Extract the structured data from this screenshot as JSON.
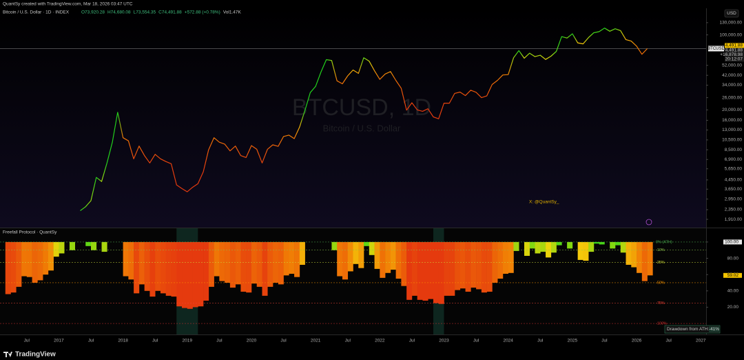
{
  "header": {
    "credit": "QuantSy created with TradingView.com, Mar 18, 2026 03:47 UTC",
    "symbol": "Bitcoin / U.S. Dollar · 1D · INDEX",
    "ohlc": [
      "O73,920.28",
      "H74,680.08",
      "L73,554.35",
      "C74,491.88",
      "+572.88 (+0.78%)"
    ],
    "volume": "Vol1.47K",
    "currency": "USD",
    "watermark": "BTCUSD, 1D",
    "watermark_sub": "Bitcoin / U.S. Dollar",
    "annotation": "X: @QuantSy_",
    "footer": "TradingView"
  },
  "chart_data": [
    {
      "type": "line",
      "log_scale": true,
      "grid": false,
      "xlim": [
        "2016-02",
        "2027-02"
      ],
      "ylim": [
        1600,
        177000
      ],
      "yticks": [
        {
          "value": 130000,
          "label": "130,000.00"
        },
        {
          "value": 100000,
          "label": "100,000.00"
        },
        {
          "value": 52000,
          "label": "52,000.00"
        },
        {
          "value": 42000,
          "label": "42,000.00"
        },
        {
          "value": 34000,
          "label": "34,000.00"
        },
        {
          "value": 26000,
          "label": "26,000.00"
        },
        {
          "value": 20000,
          "label": "20,000.00"
        },
        {
          "value": 16000,
          "label": "16,000.00"
        },
        {
          "value": 13000,
          "label": "13,000.00"
        },
        {
          "value": 10500,
          "label": "10,500.00"
        },
        {
          "value": 8500,
          "label": "8,500.00"
        },
        {
          "value": 6900,
          "label": "6,900.00"
        },
        {
          "value": 5650,
          "label": "5,650.00"
        },
        {
          "value": 4450,
          "label": "4,450.00"
        },
        {
          "value": 3650,
          "label": "3,650.00"
        },
        {
          "value": 2950,
          "label": "2,950.00"
        },
        {
          "value": 2350,
          "label": "2,350.00"
        },
        {
          "value": 1910,
          "label": "1,910.00"
        }
      ],
      "last_price": {
        "value": 74491.88,
        "label": "74,491.88"
      },
      "price_labels": [
        "74,491.88",
        "+16,878.98",
        "20:12:07"
      ],
      "x": [
        "2016-03",
        "2016-04",
        "2016-05",
        "2016-06",
        "2016-07",
        "2016-08",
        "2016-09",
        "2016-10",
        "2016-11",
        "2016-12",
        "2017-01",
        "2017-02",
        "2017-03",
        "2017-04",
        "2017-05",
        "2017-06",
        "2017-07",
        "2017-08",
        "2017-09",
        "2017-10",
        "2017-11",
        "2017-12",
        "2018-01",
        "2018-02",
        "2018-03",
        "2018-04",
        "2018-05",
        "2018-06",
        "2018-07",
        "2018-08",
        "2018-09",
        "2018-10",
        "2018-11",
        "2018-12",
        "2019-01",
        "2019-02",
        "2019-03",
        "2019-04",
        "2019-05",
        "2019-06",
        "2019-07",
        "2019-08",
        "2019-09",
        "2019-10",
        "2019-11",
        "2019-12",
        "2020-01",
        "2020-02",
        "2020-03",
        "2020-04",
        "2020-05",
        "2020-06",
        "2020-07",
        "2020-08",
        "2020-09",
        "2020-10",
        "2020-11",
        "2020-12",
        "2021-01",
        "2021-02",
        "2021-03",
        "2021-04",
        "2021-05",
        "2021-06",
        "2021-07",
        "2021-08",
        "2021-09",
        "2021-10",
        "2021-11",
        "2021-12",
        "2022-01",
        "2022-02",
        "2022-03",
        "2022-04",
        "2022-05",
        "2022-06",
        "2022-07",
        "2022-08",
        "2022-09",
        "2022-10",
        "2022-11",
        "2022-12",
        "2023-01",
        "2023-02",
        "2023-03",
        "2023-04",
        "2023-05",
        "2023-06",
        "2023-07",
        "2023-08",
        "2023-09",
        "2023-10",
        "2023-11",
        "2023-12",
        "2024-01",
        "2024-02",
        "2024-03",
        "2024-04",
        "2024-05",
        "2024-06",
        "2024-07",
        "2024-08",
        "2024-09",
        "2024-10",
        "2024-11",
        "2024-12",
        "2025-01",
        "2025-02",
        "2025-03",
        "2025-04",
        "2025-05",
        "2025-06",
        "2025-07",
        "2025-08",
        "2025-09",
        "2025-10",
        "2025-11",
        "2025-12",
        "2026-01",
        "2026-02",
        "2026-03"
      ],
      "series": [
        {
          "name": "BTCUSD",
          "values": [
            null,
            null,
            null,
            null,
            null,
            null,
            null,
            null,
            null,
            null,
            null,
            null,
            null,
            null,
            2300,
            2500,
            2850,
            4700,
            4300,
            6400,
            10000,
            19000,
            11000,
            10300,
            7000,
            9200,
            7500,
            6400,
            7700,
            7000,
            6600,
            6300,
            4000,
            3700,
            3450,
            3800,
            4100,
            5300,
            8500,
            11000,
            10000,
            9600,
            8300,
            9200,
            7500,
            7200,
            9300,
            8600,
            6400,
            8600,
            9450,
            9150,
            11300,
            11650,
            10800,
            13800,
            19700,
            29000,
            33100,
            45000,
            58800,
            57700,
            37300,
            35000,
            41500,
            47100,
            43800,
            61300,
            57000,
            46300,
            38500,
            43200,
            45500,
            37700,
            31800,
            19900,
            23300,
            20000,
            19400,
            20500,
            17200,
            16500,
            23100,
            23100,
            28500,
            29300,
            27200,
            30500,
            29200,
            26000,
            27000,
            34500,
            37700,
            42300,
            42600,
            61200,
            71300,
            60600,
            67500,
            62700,
            64600,
            59000,
            63300,
            70200,
            96400,
            93400,
            102400,
            84300,
            82500,
            94200,
            104600,
            107100,
            115700,
            108200,
            114000,
            109500,
            90400,
            87500,
            78600,
            66000,
            74491.88
          ]
        }
      ]
    },
    {
      "type": "bar",
      "title": "Freefall Protocol · QuantSy",
      "xlim": [
        "2016-02",
        "2027-02"
      ],
      "ylim": [
        -13.5,
        105
      ],
      "yticks": [
        {
          "value": 100,
          "label": "100.00"
        },
        {
          "value": 80,
          "label": "80.00"
        },
        {
          "value": 60,
          "label": "60.00"
        },
        {
          "value": 40,
          "label": "40.00"
        },
        {
          "value": 20,
          "label": "20.00"
        }
      ],
      "xticks": [
        {
          "value": "2016-07",
          "label": "Jul"
        },
        {
          "value": "2017-01",
          "label": "2017"
        },
        {
          "value": "2017-07",
          "label": "Jul"
        },
        {
          "value": "2018-01",
          "label": "2018"
        },
        {
          "value": "2018-07",
          "label": "Jul"
        },
        {
          "value": "2019-01",
          "label": "2019"
        },
        {
          "value": "2019-07",
          "label": "Jul"
        },
        {
          "value": "2020-01",
          "label": "2020"
        },
        {
          "value": "2020-07",
          "label": "Jul"
        },
        {
          "value": "2021-01",
          "label": "2021"
        },
        {
          "value": "2021-07",
          "label": "Jul"
        },
        {
          "value": "2022-01",
          "label": "2022"
        },
        {
          "value": "2022-07",
          "label": "Jul"
        },
        {
          "value": "2023-01",
          "label": "2023"
        },
        {
          "value": "2023-07",
          "label": "Jul"
        },
        {
          "value": "2024-01",
          "label": "2024"
        },
        {
          "value": "2024-07",
          "label": "Jul"
        },
        {
          "value": "2025-01",
          "label": "2025"
        },
        {
          "value": "2025-07",
          "label": "Jul"
        },
        {
          "value": "2026-01",
          "label": "2026"
        },
        {
          "value": "2026-07",
          "label": "Jul"
        },
        {
          "value": "2027-01",
          "label": "2027"
        }
      ],
      "levels": [
        {
          "value": 100,
          "label": "0% (ATH)",
          "color": "#4caf50"
        },
        {
          "value": 90,
          "label": "-10%",
          "color": "#8bc34a"
        },
        {
          "value": 75,
          "label": "-25%",
          "color": "#cddc39"
        },
        {
          "value": 50,
          "label": "-50%",
          "color": "#ff9800"
        },
        {
          "value": 25,
          "label": "-75%",
          "color": "#f44336"
        },
        {
          "value": 0,
          "label": "-100%",
          "color": "#d32f2f"
        }
      ],
      "colormap": [
        {
          "at": 30,
          "color": "#e53a0e"
        },
        {
          "at": 60,
          "color": "#f07a05"
        },
        {
          "at": 80,
          "color": "#f5d20a"
        },
        {
          "at": 93,
          "color": "#7ad911"
        },
        {
          "at": 100,
          "color": "#22d11c"
        }
      ],
      "zones": [
        [
          "2018-11",
          "2019-03"
        ],
        [
          "2022-11",
          "2023-01"
        ]
      ],
      "table": {
        "label": "Drawdown from ATH:",
        "value": "-41%"
      },
      "x": [
        "2016-03",
        "2016-04",
        "2016-05",
        "2016-06",
        "2016-07",
        "2016-08",
        "2016-09",
        "2016-10",
        "2016-11",
        "2016-12",
        "2017-01",
        "2017-02",
        "2017-03",
        "2017-04",
        "2017-05",
        "2017-06",
        "2017-07",
        "2017-08",
        "2017-09",
        "2017-10",
        "2017-11",
        "2017-12",
        "2018-01",
        "2018-02",
        "2018-03",
        "2018-04",
        "2018-05",
        "2018-06",
        "2018-07",
        "2018-08",
        "2018-09",
        "2018-10",
        "2018-11",
        "2018-12",
        "2019-01",
        "2019-02",
        "2019-03",
        "2019-04",
        "2019-05",
        "2019-06",
        "2019-07",
        "2019-08",
        "2019-09",
        "2019-10",
        "2019-11",
        "2019-12",
        "2020-01",
        "2020-02",
        "2020-03",
        "2020-04",
        "2020-05",
        "2020-06",
        "2020-07",
        "2020-08",
        "2020-09",
        "2020-10",
        "2020-11",
        "2020-12",
        "2021-01",
        "2021-02",
        "2021-03",
        "2021-04",
        "2021-05",
        "2021-06",
        "2021-07",
        "2021-08",
        "2021-09",
        "2021-10",
        "2021-11",
        "2021-12",
        "2022-01",
        "2022-02",
        "2022-03",
        "2022-04",
        "2022-05",
        "2022-06",
        "2022-07",
        "2022-08",
        "2022-09",
        "2022-10",
        "2022-11",
        "2022-12",
        "2023-01",
        "2023-02",
        "2023-03",
        "2023-04",
        "2023-05",
        "2023-06",
        "2023-07",
        "2023-08",
        "2023-09",
        "2023-10",
        "2023-11",
        "2023-12",
        "2024-01",
        "2024-02",
        "2024-03",
        "2024-04",
        "2024-05",
        "2024-06",
        "2024-07",
        "2024-08",
        "2024-09",
        "2024-10",
        "2024-11",
        "2024-12",
        "2025-01",
        "2025-02",
        "2025-03",
        "2025-04",
        "2025-05",
        "2025-06",
        "2025-07",
        "2025-08",
        "2025-09",
        "2025-10",
        "2025-11",
        "2025-12",
        "2026-01",
        "2026-02",
        "2026-03"
      ],
      "values": [
        36,
        38,
        45,
        58,
        57,
        50,
        53,
        60,
        65,
        82,
        86,
        100,
        90,
        100,
        100,
        95,
        90,
        100,
        88,
        100,
        100,
        100,
        58,
        54,
        37,
        48,
        40,
        33,
        40,
        37,
        34,
        33,
        21,
        19,
        18,
        20,
        21,
        28,
        45,
        58,
        52,
        50,
        44,
        48,
        39,
        38,
        49,
        45,
        34,
        45,
        50,
        48,
        59,
        61,
        57,
        72,
        100,
        100,
        100,
        100,
        100,
        90,
        58,
        54,
        64,
        73,
        68,
        95,
        84,
        67,
        56,
        62,
        66,
        55,
        46,
        29,
        34,
        29,
        28,
        30,
        25,
        24,
        34,
        34,
        41,
        43,
        39,
        44,
        42,
        38,
        39,
        50,
        55,
        61,
        62,
        89,
        100,
        83,
        92,
        86,
        88,
        81,
        87,
        96,
        100,
        92,
        100,
        78,
        77,
        88,
        98,
        97,
        100,
        92,
        96,
        87,
        72,
        69,
        62,
        52,
        59.02
      ]
    }
  ]
}
